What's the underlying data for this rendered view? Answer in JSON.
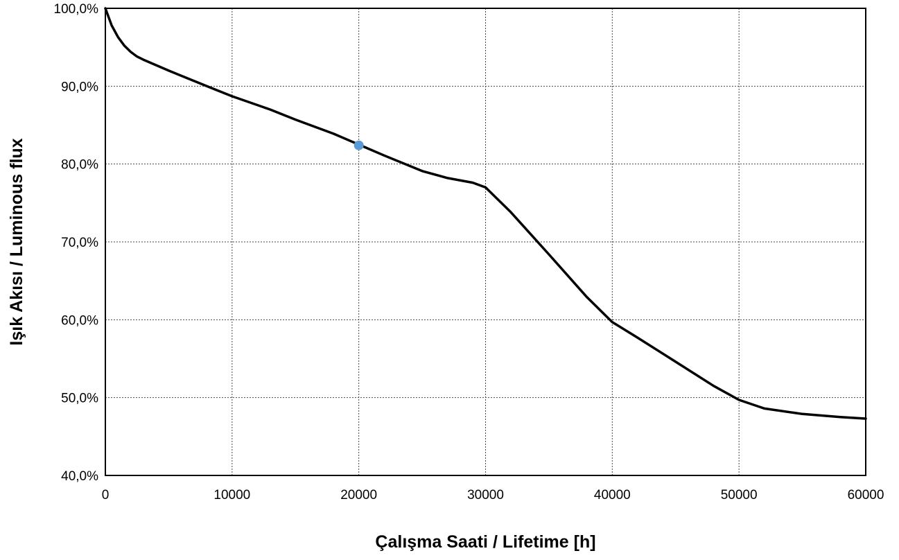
{
  "chart_data": {
    "type": "line",
    "xlabel": "Çalışma Saati / Lifetime [h]",
    "ylabel": "Işık Akısı / Luminous  flux",
    "xlim": [
      0,
      60000
    ],
    "ylim": [
      40,
      100
    ],
    "x_ticks": [
      0,
      10000,
      20000,
      30000,
      40000,
      50000,
      60000
    ],
    "x_tick_labels": [
      "0",
      "10000",
      "20000",
      "30000",
      "40000",
      "50000",
      "60000"
    ],
    "y_ticks": [
      40,
      50,
      60,
      70,
      80,
      90,
      100
    ],
    "y_tick_labels": [
      "40,0%",
      "50,0%",
      "60,0%",
      "70,0%",
      "80,0%",
      "90,0%",
      "100,0%"
    ],
    "grid": true,
    "legend": "none",
    "series": [
      {
        "color": "#000000",
        "x": [
          0,
          500,
          1000,
          1500,
          2000,
          2500,
          3000,
          5000,
          8000,
          10000,
          13000,
          15000,
          18000,
          20000,
          22000,
          25000,
          27000,
          29000,
          30000,
          32000,
          35000,
          38000,
          40000,
          42000,
          45000,
          48000,
          50000,
          52000,
          55000,
          58000,
          60000
        ],
        "y": [
          100,
          97.8,
          96.3,
          95.2,
          94.4,
          93.8,
          93.4,
          92.0,
          90.0,
          88.7,
          87.0,
          85.7,
          83.9,
          82.5,
          81.1,
          79.1,
          78.2,
          77.6,
          77.0,
          73.8,
          68.4,
          62.9,
          59.7,
          57.7,
          54.6,
          51.5,
          49.7,
          48.6,
          47.9,
          47.5,
          47.3
        ]
      }
    ],
    "highlight_point": {
      "x": 20000,
      "y": 82.4,
      "color": "#5b9bd5"
    }
  }
}
